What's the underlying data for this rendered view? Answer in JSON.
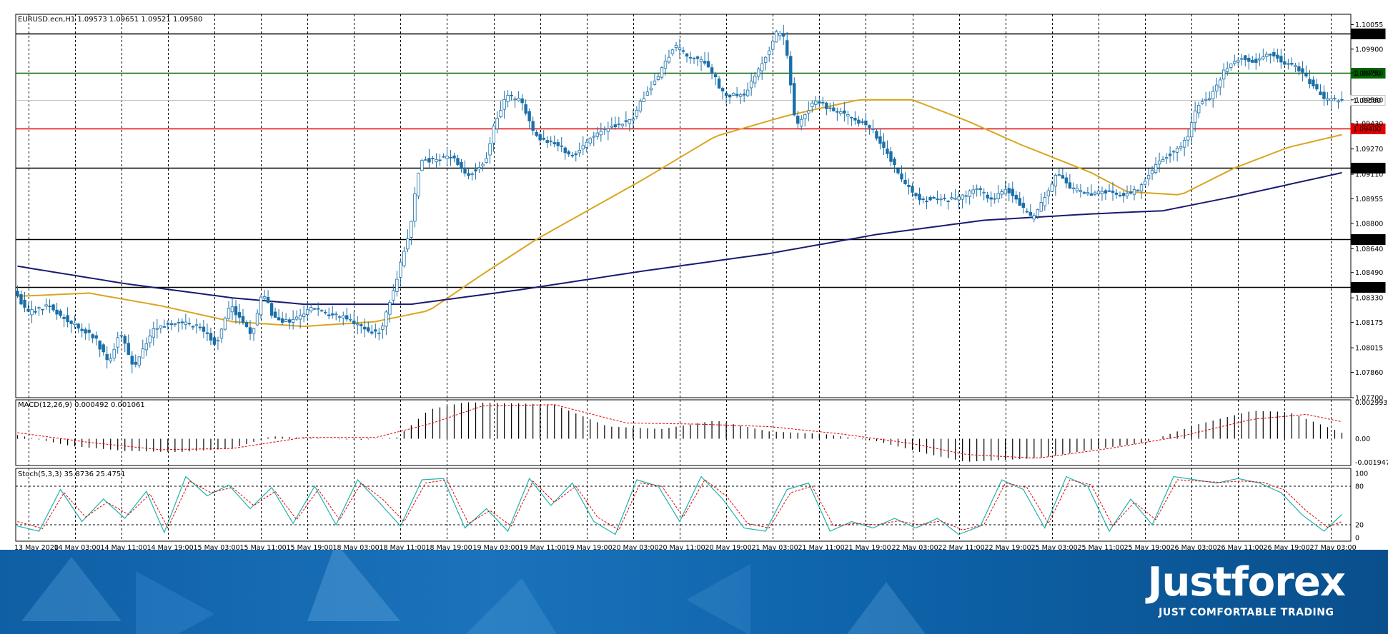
{
  "colors": {
    "candle_up": "#ffffff",
    "candle_down": "#1a6fa8",
    "candle_outline": "#1a6fa8",
    "ma_fast": "#daa520",
    "ma_slow": "#191970",
    "level_black": "#000000",
    "level_green": "#006400",
    "level_red": "#e00000",
    "current_price_line": "#c0c0c0",
    "macd_hist": "#000000",
    "macd_signal": "#e00000",
    "stoch_main": "#20b2aa",
    "stoch_signal": "#e00000",
    "brand_bg": "#1466ad"
  },
  "chart_data": [
    {
      "type": "candlestick",
      "title": "EURUSD.ecn,H1  1.09573 1.09651 1.09521 1.09580",
      "symbol": "EURUSD.ecn",
      "timeframe": "H1",
      "ohlc_header": "1.09573 1.09651 1.09521 1.09580",
      "ylim": [
        1.077,
        1.1012
      ],
      "y_ticks": [
        "1.10055",
        "1.09900",
        "1.09750",
        "1.09580",
        "1.09430",
        "1.09270",
        "1.09110",
        "1.08955",
        "1.08800",
        "1.08640",
        "1.08490",
        "1.08330",
        "1.08175",
        "1.08015",
        "1.07860",
        "1.07700"
      ],
      "x_labels": [
        "13 May 2020",
        "14 May 03:00",
        "14 May 11:00",
        "14 May 19:00",
        "15 May 03:00",
        "15 May 11:00",
        "15 May 19:00",
        "18 May 03:00",
        "18 May 11:00",
        "18 May 19:00",
        "19 May 03:00",
        "19 May 11:00",
        "19 May 19:00",
        "20 May 03:00",
        "20 May 11:00",
        "20 May 19:00",
        "21 May 03:00",
        "21 May 11:00",
        "21 May 19:00",
        "22 May 03:00",
        "22 May 11:00",
        "22 May 19:00",
        "25 May 03:00",
        "25 May 11:00",
        "25 May 19:00",
        "26 May 03:00",
        "26 May 11:00",
        "26 May 19:00",
        "27 May 03:00"
      ],
      "levels": [
        {
          "price": 1.1,
          "label": "1.10000",
          "color": "black"
        },
        {
          "price": 1.0975,
          "label": "1.09750",
          "color": "green"
        },
        {
          "price": 1.0958,
          "label": "1.09580",
          "color": "gray"
        },
        {
          "price": 1.094,
          "label": "1.09400",
          "color": "red"
        },
        {
          "price": 1.0915,
          "label": "1.09150",
          "color": "black"
        },
        {
          "price": 1.087,
          "label": "1.08700",
          "color": "black"
        },
        {
          "price": 1.084,
          "label": "1.08400",
          "color": "black"
        }
      ],
      "anchors": [
        [
          0,
          1.0838
        ],
        [
          3,
          1.0823
        ],
        [
          9,
          1.0828
        ],
        [
          15,
          1.0818
        ],
        [
          22,
          1.0808
        ],
        [
          26,
          1.0792
        ],
        [
          29,
          1.0812
        ],
        [
          33,
          1.0788
        ],
        [
          38,
          1.0812
        ],
        [
          44,
          1.0818
        ],
        [
          51,
          1.0815
        ],
        [
          56,
          1.0804
        ],
        [
          60,
          1.0828
        ],
        [
          66,
          1.081
        ],
        [
          69,
          1.0837
        ],
        [
          72,
          1.082
        ],
        [
          76,
          1.0818
        ],
        [
          83,
          1.0826
        ],
        [
          92,
          1.082
        ],
        [
          99,
          1.0812
        ],
        [
          102,
          1.0812
        ],
        [
          106,
          1.0842
        ],
        [
          110,
          1.0875
        ],
        [
          113,
          1.092
        ],
        [
          117,
          1.092
        ],
        [
          122,
          1.0922
        ],
        [
          126,
          1.091
        ],
        [
          131,
          1.0918
        ],
        [
          134,
          1.0945
        ],
        [
          137,
          1.096
        ],
        [
          141,
          1.0958
        ],
        [
          145,
          1.0935
        ],
        [
          151,
          1.093
        ],
        [
          156,
          1.0922
        ],
        [
          161,
          1.0935
        ],
        [
          167,
          1.0942
        ],
        [
          172,
          1.0945
        ],
        [
          176,
          1.0962
        ],
        [
          180,
          1.0975
        ],
        [
          184,
          1.0992
        ],
        [
          188,
          1.0985
        ],
        [
          193,
          1.0982
        ],
        [
          198,
          1.096
        ],
        [
          204,
          1.0962
        ],
        [
          207,
          1.0975
        ],
        [
          210,
          1.0988
        ],
        [
          213,
          1.1002
        ],
        [
          215,
          1.0995
        ],
        [
          218,
          1.094
        ],
        [
          223,
          1.0958
        ],
        [
          228,
          1.0952
        ],
        [
          233,
          1.0948
        ],
        [
          239,
          1.094
        ],
        [
          244,
          1.0922
        ],
        [
          248,
          1.0905
        ],
        [
          253,
          1.0895
        ],
        [
          258,
          1.0895
        ],
        [
          263,
          1.0895
        ],
        [
          268,
          1.0902
        ],
        [
          273,
          1.0895
        ],
        [
          277,
          1.0902
        ],
        [
          281,
          1.089
        ],
        [
          284,
          1.0883
        ],
        [
          288,
          1.0898
        ],
        [
          291,
          1.0912
        ],
        [
          295,
          1.0902
        ],
        [
          300,
          1.0898
        ],
        [
          305,
          1.09
        ],
        [
          310,
          1.0898
        ],
        [
          314,
          1.0902
        ],
        [
          319,
          1.0918
        ],
        [
          323,
          1.0925
        ],
        [
          327,
          1.0932
        ],
        [
          330,
          1.0955
        ],
        [
          334,
          1.096
        ],
        [
          338,
          1.0978
        ],
        [
          342,
          1.0985
        ],
        [
          346,
          1.0982
        ],
        [
          350,
          1.0988
        ],
        [
          354,
          1.0982
        ],
        [
          358,
          1.0978
        ],
        [
          362,
          1.0968
        ],
        [
          366,
          1.0958
        ],
        [
          370,
          1.0958
        ]
      ],
      "ma_fast": [
        [
          0,
          1.0834
        ],
        [
          20,
          1.0836
        ],
        [
          40,
          1.0828
        ],
        [
          60,
          1.0818
        ],
        [
          80,
          1.0815
        ],
        [
          100,
          1.0818
        ],
        [
          115,
          1.0825
        ],
        [
          130,
          1.0848
        ],
        [
          145,
          1.087
        ],
        [
          160,
          1.0889
        ],
        [
          175,
          1.0908
        ],
        [
          195,
          1.0935
        ],
        [
          215,
          1.0948
        ],
        [
          235,
          1.0958
        ],
        [
          250,
          1.0958
        ],
        [
          265,
          1.0945
        ],
        [
          280,
          1.093
        ],
        [
          300,
          1.0912
        ],
        [
          310,
          1.09
        ],
        [
          325,
          1.0898
        ],
        [
          340,
          1.0915
        ],
        [
          355,
          1.0928
        ],
        [
          370,
          1.0936
        ]
      ],
      "ma_slow": [
        [
          0,
          1.0853
        ],
        [
          30,
          1.0842
        ],
        [
          60,
          1.0833
        ],
        [
          80,
          1.0829
        ],
        [
          110,
          1.0829
        ],
        [
          140,
          1.0838
        ],
        [
          175,
          1.085
        ],
        [
          210,
          1.0861
        ],
        [
          240,
          1.0873
        ],
        [
          270,
          1.0882
        ],
        [
          300,
          1.0886
        ],
        [
          320,
          1.0888
        ],
        [
          340,
          1.0897
        ],
        [
          370,
          1.0912
        ]
      ]
    },
    {
      "type": "histogram",
      "title": "MACD(12,26,9) 0.000492 0.001061",
      "params": "12,26,9",
      "main": 0.000492,
      "signal": 0.001061,
      "ylim": [
        -0.0022,
        0.0032
      ],
      "y_ticks": [
        "0.002993",
        "0.00",
        "-0.001947"
      ],
      "hist_anchors": [
        [
          0,
          0.0003
        ],
        [
          15,
          -0.0006
        ],
        [
          30,
          -0.001
        ],
        [
          45,
          -0.0011
        ],
        [
          60,
          -0.0008
        ],
        [
          71,
          0.0002
        ],
        [
          95,
          -0.0001
        ],
        [
          106,
          0.0001
        ],
        [
          115,
          0.0024
        ],
        [
          125,
          0.003
        ],
        [
          140,
          0.0029
        ],
        [
          150,
          0.0028
        ],
        [
          165,
          0.001
        ],
        [
          180,
          0.0008
        ],
        [
          195,
          0.0015
        ],
        [
          210,
          0.0006
        ],
        [
          225,
          0.0004
        ],
        [
          240,
          -0.0002
        ],
        [
          255,
          -0.0013
        ],
        [
          265,
          -0.0019
        ],
        [
          285,
          -0.0016
        ],
        [
          300,
          -0.0009
        ],
        [
          315,
          -0.0003
        ],
        [
          330,
          0.0012
        ],
        [
          345,
          0.0023
        ],
        [
          355,
          0.0022
        ],
        [
          370,
          0.0005
        ]
      ],
      "signal_anchors": [
        [
          0,
          0.0005
        ],
        [
          20,
          -0.0003
        ],
        [
          40,
          -0.0009
        ],
        [
          60,
          -0.0008
        ],
        [
          80,
          0.0001
        ],
        [
          100,
          0.0001
        ],
        [
          115,
          0.0012
        ],
        [
          130,
          0.0027
        ],
        [
          150,
          0.0028
        ],
        [
          170,
          0.0013
        ],
        [
          190,
          0.0012
        ],
        [
          210,
          0.001
        ],
        [
          230,
          0.0004
        ],
        [
          250,
          -0.0004
        ],
        [
          265,
          -0.0013
        ],
        [
          285,
          -0.0016
        ],
        [
          305,
          -0.0008
        ],
        [
          325,
          0.0002
        ],
        [
          345,
          0.0016
        ],
        [
          360,
          0.002
        ],
        [
          370,
          0.0014
        ]
      ]
    },
    {
      "type": "line",
      "title": "Stoch(5,3,3) 35.8736 25.4751",
      "params": "5,3,3",
      "main": 35.8736,
      "signal": 25.4751,
      "ylim": [
        0,
        100
      ],
      "y_ticks": [
        "100",
        "80",
        "20",
        "0"
      ],
      "levels": [
        80,
        20
      ],
      "stoch_main": [
        [
          0,
          18
        ],
        [
          6,
          10
        ],
        [
          12,
          75
        ],
        [
          18,
          25
        ],
        [
          24,
          60
        ],
        [
          30,
          30
        ],
        [
          36,
          72
        ],
        [
          41,
          8
        ],
        [
          47,
          95
        ],
        [
          53,
          65
        ],
        [
          59,
          82
        ],
        [
          65,
          45
        ],
        [
          71,
          78
        ],
        [
          77,
          22
        ],
        [
          83,
          80
        ],
        [
          89,
          20
        ],
        [
          95,
          90
        ],
        [
          101,
          55
        ],
        [
          107,
          18
        ],
        [
          113,
          90
        ],
        [
          119,
          92
        ],
        [
          125,
          15
        ],
        [
          131,
          45
        ],
        [
          137,
          10
        ],
        [
          143,
          92
        ],
        [
          149,
          50
        ],
        [
          155,
          85
        ],
        [
          161,
          25
        ],
        [
          167,
          5
        ],
        [
          173,
          90
        ],
        [
          179,
          80
        ],
        [
          185,
          25
        ],
        [
          191,
          95
        ],
        [
          197,
          60
        ],
        [
          203,
          15
        ],
        [
          209,
          10
        ],
        [
          215,
          75
        ],
        [
          221,
          85
        ],
        [
          227,
          10
        ],
        [
          233,
          25
        ],
        [
          239,
          15
        ],
        [
          245,
          30
        ],
        [
          251,
          15
        ],
        [
          257,
          30
        ],
        [
          263,
          5
        ],
        [
          269,
          18
        ],
        [
          275,
          90
        ],
        [
          281,
          75
        ],
        [
          287,
          15
        ],
        [
          293,
          95
        ],
        [
          299,
          80
        ],
        [
          305,
          10
        ],
        [
          311,
          60
        ],
        [
          317,
          20
        ],
        [
          323,
          95
        ],
        [
          329,
          90
        ],
        [
          335,
          85
        ],
        [
          341,
          92
        ],
        [
          347,
          85
        ],
        [
          353,
          70
        ],
        [
          359,
          35
        ],
        [
          365,
          10
        ],
        [
          370,
          36
        ]
      ],
      "stoch_signal": [
        [
          0,
          25
        ],
        [
          7,
          14
        ],
        [
          13,
          70
        ],
        [
          19,
          32
        ],
        [
          25,
          55
        ],
        [
          31,
          36
        ],
        [
          37,
          68
        ],
        [
          42,
          15
        ],
        [
          48,
          88
        ],
        [
          54,
          70
        ],
        [
          60,
          78
        ],
        [
          66,
          50
        ],
        [
          72,
          72
        ],
        [
          78,
          28
        ],
        [
          84,
          75
        ],
        [
          90,
          28
        ],
        [
          96,
          85
        ],
        [
          102,
          60
        ],
        [
          108,
          25
        ],
        [
          114,
          85
        ],
        [
          120,
          90
        ],
        [
          126,
          22
        ],
        [
          132,
          42
        ],
        [
          138,
          18
        ],
        [
          144,
          88
        ],
        [
          150,
          55
        ],
        [
          156,
          80
        ],
        [
          162,
          32
        ],
        [
          168,
          12
        ],
        [
          174,
          85
        ],
        [
          180,
          80
        ],
        [
          186,
          32
        ],
        [
          192,
          90
        ],
        [
          198,
          65
        ],
        [
          204,
          22
        ],
        [
          210,
          15
        ],
        [
          216,
          70
        ],
        [
          222,
          80
        ],
        [
          228,
          18
        ],
        [
          234,
          22
        ],
        [
          240,
          20
        ],
        [
          246,
          26
        ],
        [
          252,
          20
        ],
        [
          258,
          26
        ],
        [
          264,
          12
        ],
        [
          270,
          20
        ],
        [
          276,
          85
        ],
        [
          282,
          78
        ],
        [
          288,
          22
        ],
        [
          294,
          90
        ],
        [
          300,
          82
        ],
        [
          306,
          18
        ],
        [
          312,
          55
        ],
        [
          318,
          28
        ],
        [
          324,
          90
        ],
        [
          330,
          88
        ],
        [
          336,
          86
        ],
        [
          342,
          88
        ],
        [
          348,
          86
        ],
        [
          354,
          74
        ],
        [
          360,
          42
        ],
        [
          366,
          16
        ],
        [
          370,
          25
        ]
      ]
    }
  ],
  "brand": {
    "name": "Justforex",
    "tagline": "JUST COMFORTABLE TRADING"
  }
}
